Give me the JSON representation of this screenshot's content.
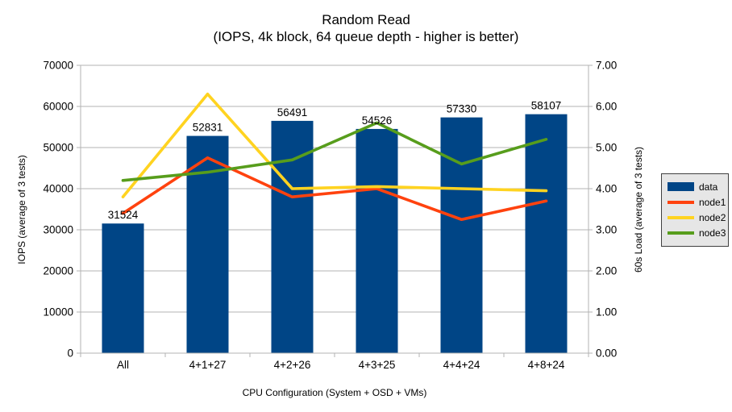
{
  "title": "Random Read",
  "subtitle": "(IOPS, 4k block, 64 queue depth - higher is better)",
  "chart_data": {
    "type": "bar",
    "note": "combo chart: one bar series on left axis, three line series on right axis",
    "categories": [
      "All",
      "4+1+27",
      "4+2+26",
      "4+3+25",
      "4+4+24",
      "4+8+24"
    ],
    "series": [
      {
        "name": "data",
        "type": "bar",
        "axis": "left",
        "color": "#004586",
        "values": [
          31524,
          52831,
          56491,
          54526,
          57330,
          58107
        ],
        "labels": [
          "31524",
          "52831",
          "56491",
          "54526",
          "57330",
          "58107"
        ]
      },
      {
        "name": "node1",
        "type": "line",
        "axis": "right",
        "color": "#ff420e",
        "values": [
          3.4,
          4.75,
          3.8,
          4.0,
          3.25,
          3.7
        ]
      },
      {
        "name": "node2",
        "type": "line",
        "axis": "right",
        "color": "#ffd320",
        "values": [
          3.8,
          6.3,
          4.0,
          4.05,
          4.0,
          3.95
        ]
      },
      {
        "name": "node3",
        "type": "line",
        "axis": "right",
        "color": "#579d1c",
        "values": [
          4.2,
          4.4,
          4.7,
          5.6,
          4.6,
          5.2
        ]
      }
    ],
    "left_axis": {
      "title": "IOPS (average of 3 tests)",
      "min": 0,
      "max": 70000,
      "ticks": [
        "0",
        "10000",
        "20000",
        "30000",
        "40000",
        "50000",
        "60000",
        "70000"
      ]
    },
    "right_axis": {
      "title": "60s Load (average of 3 tests)",
      "min": 0,
      "max": 7,
      "ticks": [
        "0.00",
        "1.00",
        "2.00",
        "3.00",
        "4.00",
        "5.00",
        "6.00",
        "7.00"
      ]
    },
    "x_axis": {
      "title": "CPU Configuration (System + OSD + VMs)"
    },
    "grid": true,
    "legend_position": "right",
    "colors": {
      "grid": "#b3b3b3",
      "axis": "#b3b3b3",
      "text": "#000000",
      "legend_bg": "#e6e6e6",
      "legend_border": "#404040",
      "background": "#ffffff"
    }
  }
}
